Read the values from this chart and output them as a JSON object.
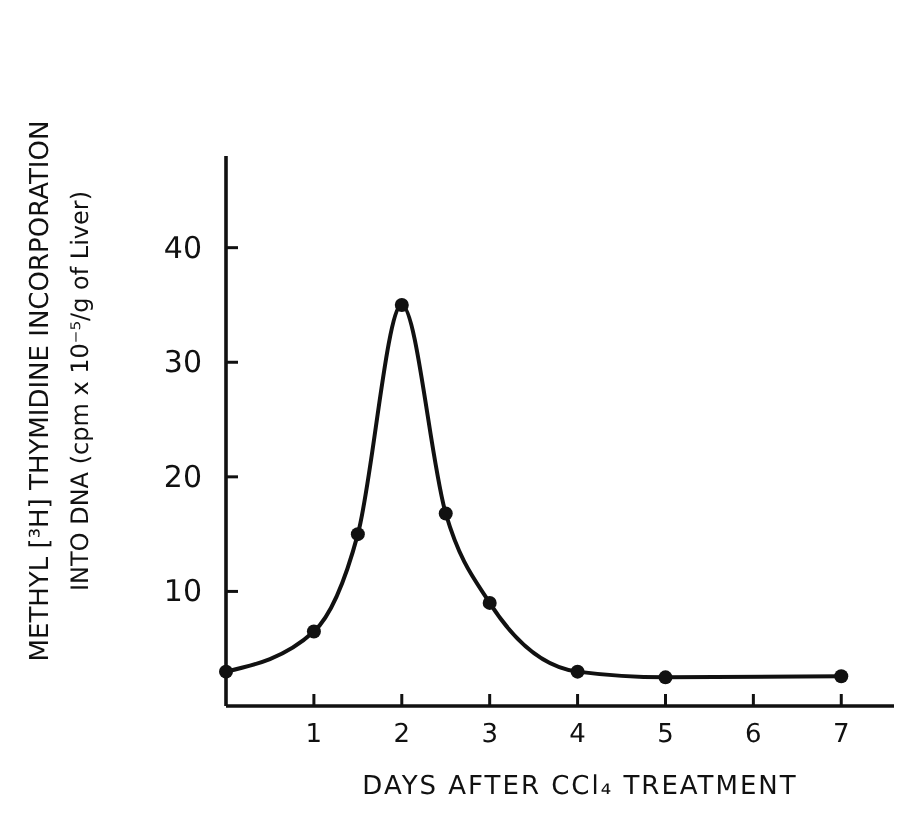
{
  "chart_data": {
    "type": "line",
    "xlabel": "DAYS AFTER CCl₄ TREATMENT",
    "ylabel": "METHYL [³H] THYMIDINE INCORPORATION\nINTO DNA  (cpm x 10⁻⁵/g of Liver)",
    "x": [
      0,
      1,
      1.5,
      2,
      2.5,
      3,
      4,
      5,
      7
    ],
    "values": [
      3,
      6.5,
      15,
      35,
      16.8,
      9,
      3,
      2.5,
      2.6
    ],
    "color": "#111111",
    "marker": "circle",
    "line_style": "solid",
    "xlim": [
      0,
      7.6
    ],
    "xticks": [
      1,
      2,
      3,
      4,
      5,
      6,
      7
    ],
    "ylim": [
      0,
      48
    ],
    "yticks": [
      10,
      20,
      30,
      40
    ],
    "grid": false
  }
}
